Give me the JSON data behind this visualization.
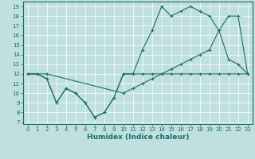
{
  "xlabel": "Humidex (Indice chaleur)",
  "bg_color": "#c0e0e0",
  "line_color": "#1a6b6b",
  "grid_color": "#ffffff",
  "xlim": [
    -0.5,
    23.5
  ],
  "ylim": [
    6.8,
    19.5
  ],
  "xticks": [
    0,
    1,
    2,
    3,
    4,
    5,
    6,
    7,
    8,
    9,
    10,
    11,
    12,
    13,
    14,
    15,
    16,
    17,
    18,
    19,
    20,
    21,
    22,
    23
  ],
  "yticks": [
    7,
    8,
    9,
    10,
    11,
    12,
    13,
    14,
    15,
    16,
    17,
    18,
    19
  ],
  "line1_x": [
    0,
    1,
    2,
    3,
    4,
    5,
    6,
    7,
    8,
    9,
    10,
    11,
    12,
    13,
    14,
    15,
    16,
    17,
    18,
    19,
    20,
    21,
    22,
    23
  ],
  "line1_y": [
    12,
    12,
    11.5,
    9,
    10.5,
    10,
    9,
    7.5,
    8,
    9.5,
    12,
    12,
    12,
    12,
    12,
    12,
    12,
    12,
    12,
    12,
    12,
    12,
    12,
    12
  ],
  "line2_x": [
    0,
    1,
    2,
    3,
    4,
    5,
    6,
    7,
    8,
    9,
    10,
    11,
    12,
    13,
    14,
    15,
    16,
    17,
    18,
    19,
    20,
    21,
    22,
    23
  ],
  "line2_y": [
    12,
    12,
    11.5,
    9,
    10.5,
    10,
    9,
    7.5,
    8,
    9.5,
    12,
    12,
    14.5,
    16.5,
    19,
    18,
    18.5,
    19,
    18.5,
    18,
    16.5,
    13.5,
    13,
    12
  ],
  "line3_x": [
    0,
    1,
    2,
    10,
    11,
    12,
    13,
    14,
    15,
    16,
    17,
    18,
    19,
    20,
    21,
    22,
    23
  ],
  "line3_y": [
    12,
    12,
    12,
    10,
    10.5,
    11,
    11.5,
    12,
    12.5,
    13,
    13.5,
    14,
    14.5,
    16.5,
    18,
    18,
    12
  ],
  "xlabel_fontsize": 6.5,
  "tick_fontsize": 5
}
